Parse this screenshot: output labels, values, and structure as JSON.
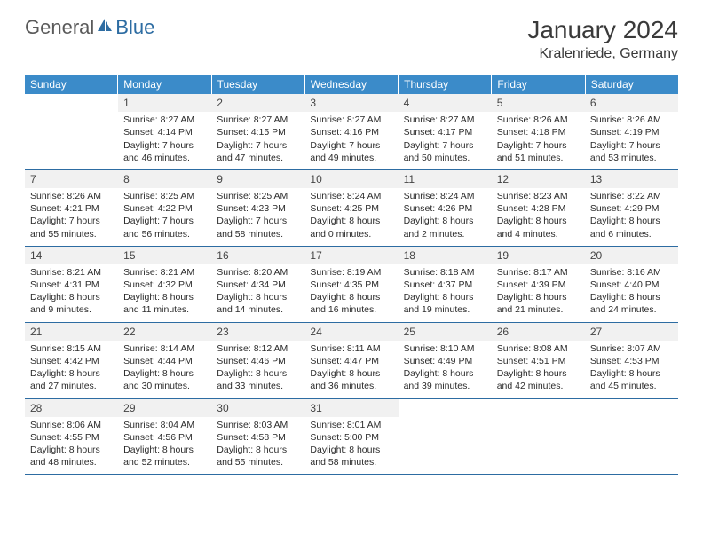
{
  "logo": {
    "general": "General",
    "blue": "Blue"
  },
  "title": "January 2024",
  "location": "Kralenriede, Germany",
  "colors": {
    "header_bg": "#3b8bc9",
    "header_text": "#ffffff",
    "row_border": "#2d6ca2",
    "daynum_bg": "#f1f1f1",
    "text": "#2b2b2b",
    "logo_gray": "#5a5a5a",
    "logo_blue": "#2d6ca2"
  },
  "day_headers": [
    "Sunday",
    "Monday",
    "Tuesday",
    "Wednesday",
    "Thursday",
    "Friday",
    "Saturday"
  ],
  "weeks": [
    [
      {
        "n": "",
        "empty": true
      },
      {
        "n": "1",
        "sunrise": "Sunrise: 8:27 AM",
        "sunset": "Sunset: 4:14 PM",
        "daylight": "Daylight: 7 hours and 46 minutes."
      },
      {
        "n": "2",
        "sunrise": "Sunrise: 8:27 AM",
        "sunset": "Sunset: 4:15 PM",
        "daylight": "Daylight: 7 hours and 47 minutes."
      },
      {
        "n": "3",
        "sunrise": "Sunrise: 8:27 AM",
        "sunset": "Sunset: 4:16 PM",
        "daylight": "Daylight: 7 hours and 49 minutes."
      },
      {
        "n": "4",
        "sunrise": "Sunrise: 8:27 AM",
        "sunset": "Sunset: 4:17 PM",
        "daylight": "Daylight: 7 hours and 50 minutes."
      },
      {
        "n": "5",
        "sunrise": "Sunrise: 8:26 AM",
        "sunset": "Sunset: 4:18 PM",
        "daylight": "Daylight: 7 hours and 51 minutes."
      },
      {
        "n": "6",
        "sunrise": "Sunrise: 8:26 AM",
        "sunset": "Sunset: 4:19 PM",
        "daylight": "Daylight: 7 hours and 53 minutes."
      }
    ],
    [
      {
        "n": "7",
        "sunrise": "Sunrise: 8:26 AM",
        "sunset": "Sunset: 4:21 PM",
        "daylight": "Daylight: 7 hours and 55 minutes."
      },
      {
        "n": "8",
        "sunrise": "Sunrise: 8:25 AM",
        "sunset": "Sunset: 4:22 PM",
        "daylight": "Daylight: 7 hours and 56 minutes."
      },
      {
        "n": "9",
        "sunrise": "Sunrise: 8:25 AM",
        "sunset": "Sunset: 4:23 PM",
        "daylight": "Daylight: 7 hours and 58 minutes."
      },
      {
        "n": "10",
        "sunrise": "Sunrise: 8:24 AM",
        "sunset": "Sunset: 4:25 PM",
        "daylight": "Daylight: 8 hours and 0 minutes."
      },
      {
        "n": "11",
        "sunrise": "Sunrise: 8:24 AM",
        "sunset": "Sunset: 4:26 PM",
        "daylight": "Daylight: 8 hours and 2 minutes."
      },
      {
        "n": "12",
        "sunrise": "Sunrise: 8:23 AM",
        "sunset": "Sunset: 4:28 PM",
        "daylight": "Daylight: 8 hours and 4 minutes."
      },
      {
        "n": "13",
        "sunrise": "Sunrise: 8:22 AM",
        "sunset": "Sunset: 4:29 PM",
        "daylight": "Daylight: 8 hours and 6 minutes."
      }
    ],
    [
      {
        "n": "14",
        "sunrise": "Sunrise: 8:21 AM",
        "sunset": "Sunset: 4:31 PM",
        "daylight": "Daylight: 8 hours and 9 minutes."
      },
      {
        "n": "15",
        "sunrise": "Sunrise: 8:21 AM",
        "sunset": "Sunset: 4:32 PM",
        "daylight": "Daylight: 8 hours and 11 minutes."
      },
      {
        "n": "16",
        "sunrise": "Sunrise: 8:20 AM",
        "sunset": "Sunset: 4:34 PM",
        "daylight": "Daylight: 8 hours and 14 minutes."
      },
      {
        "n": "17",
        "sunrise": "Sunrise: 8:19 AM",
        "sunset": "Sunset: 4:35 PM",
        "daylight": "Daylight: 8 hours and 16 minutes."
      },
      {
        "n": "18",
        "sunrise": "Sunrise: 8:18 AM",
        "sunset": "Sunset: 4:37 PM",
        "daylight": "Daylight: 8 hours and 19 minutes."
      },
      {
        "n": "19",
        "sunrise": "Sunrise: 8:17 AM",
        "sunset": "Sunset: 4:39 PM",
        "daylight": "Daylight: 8 hours and 21 minutes."
      },
      {
        "n": "20",
        "sunrise": "Sunrise: 8:16 AM",
        "sunset": "Sunset: 4:40 PM",
        "daylight": "Daylight: 8 hours and 24 minutes."
      }
    ],
    [
      {
        "n": "21",
        "sunrise": "Sunrise: 8:15 AM",
        "sunset": "Sunset: 4:42 PM",
        "daylight": "Daylight: 8 hours and 27 minutes."
      },
      {
        "n": "22",
        "sunrise": "Sunrise: 8:14 AM",
        "sunset": "Sunset: 4:44 PM",
        "daylight": "Daylight: 8 hours and 30 minutes."
      },
      {
        "n": "23",
        "sunrise": "Sunrise: 8:12 AM",
        "sunset": "Sunset: 4:46 PM",
        "daylight": "Daylight: 8 hours and 33 minutes."
      },
      {
        "n": "24",
        "sunrise": "Sunrise: 8:11 AM",
        "sunset": "Sunset: 4:47 PM",
        "daylight": "Daylight: 8 hours and 36 minutes."
      },
      {
        "n": "25",
        "sunrise": "Sunrise: 8:10 AM",
        "sunset": "Sunset: 4:49 PM",
        "daylight": "Daylight: 8 hours and 39 minutes."
      },
      {
        "n": "26",
        "sunrise": "Sunrise: 8:08 AM",
        "sunset": "Sunset: 4:51 PM",
        "daylight": "Daylight: 8 hours and 42 minutes."
      },
      {
        "n": "27",
        "sunrise": "Sunrise: 8:07 AM",
        "sunset": "Sunset: 4:53 PM",
        "daylight": "Daylight: 8 hours and 45 minutes."
      }
    ],
    [
      {
        "n": "28",
        "sunrise": "Sunrise: 8:06 AM",
        "sunset": "Sunset: 4:55 PM",
        "daylight": "Daylight: 8 hours and 48 minutes."
      },
      {
        "n": "29",
        "sunrise": "Sunrise: 8:04 AM",
        "sunset": "Sunset: 4:56 PM",
        "daylight": "Daylight: 8 hours and 52 minutes."
      },
      {
        "n": "30",
        "sunrise": "Sunrise: 8:03 AM",
        "sunset": "Sunset: 4:58 PM",
        "daylight": "Daylight: 8 hours and 55 minutes."
      },
      {
        "n": "31",
        "sunrise": "Sunrise: 8:01 AM",
        "sunset": "Sunset: 5:00 PM",
        "daylight": "Daylight: 8 hours and 58 minutes."
      },
      {
        "n": "",
        "empty": true
      },
      {
        "n": "",
        "empty": true
      },
      {
        "n": "",
        "empty": true
      }
    ]
  ]
}
